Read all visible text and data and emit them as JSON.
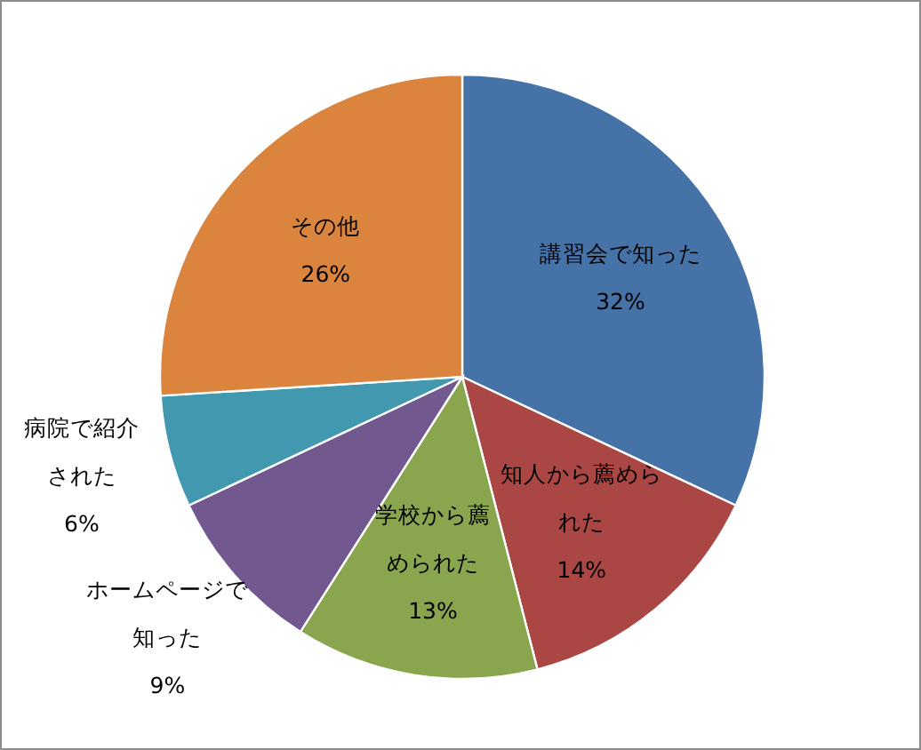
{
  "chart_data": {
    "type": "pie",
    "categories": [
      "講習会で知った",
      "知人から薦められた",
      "学校から薦められた",
      "ホームページで知った",
      "病院で紹介された",
      "その他"
    ],
    "values": [
      32,
      14,
      13,
      9,
      6,
      26
    ],
    "colors": [
      "#4572a7",
      "#aa4643",
      "#89a54e",
      "#71588f",
      "#4198af",
      "#db843d"
    ],
    "value_labels": [
      "32%",
      "14%",
      "13%",
      "9%",
      "6%",
      "26%"
    ]
  }
}
